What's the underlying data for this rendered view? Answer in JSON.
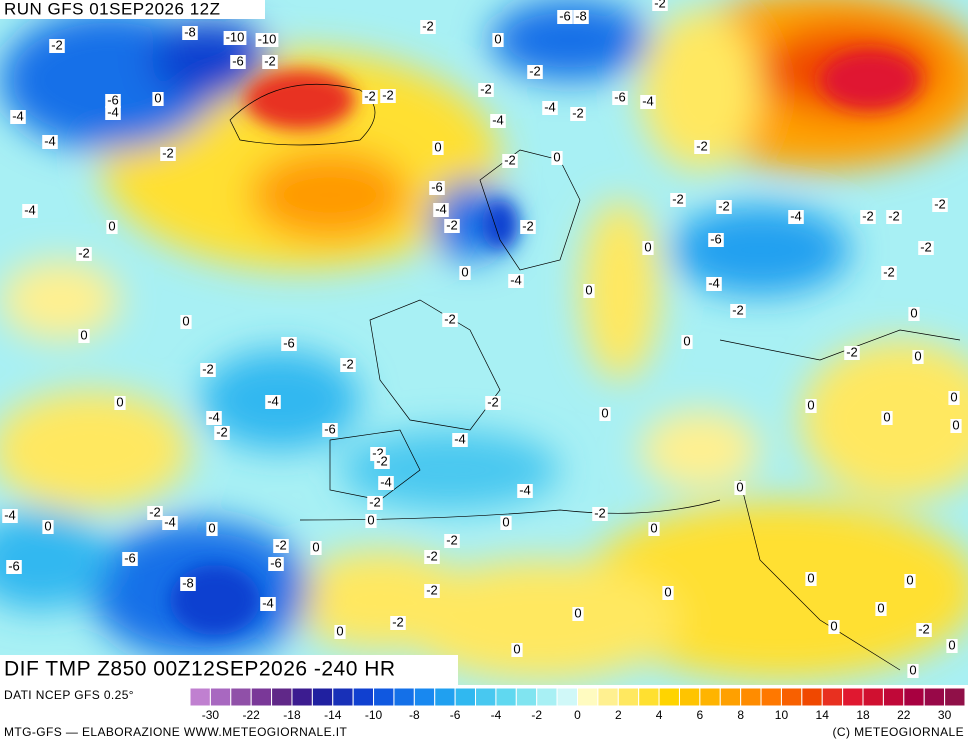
{
  "header": {
    "run": "RUN GFS 01SEP2026 12Z"
  },
  "map": {
    "labels": [
      -2,
      0,
      -6,
      -8,
      -2,
      -2,
      -8,
      -10,
      -10,
      -6,
      -2,
      -2,
      -2,
      -2,
      -2,
      -6,
      -4,
      0,
      -4,
      -6,
      -4,
      -4,
      -2,
      -4,
      -4,
      -2,
      0,
      -2,
      0,
      -2,
      -6,
      -4,
      -2,
      -4,
      0,
      -2,
      -2,
      -2,
      -4,
      -2,
      -2,
      -2,
      -6,
      -2,
      0,
      0,
      -4,
      0,
      -2,
      -4,
      -2,
      0,
      -2,
      0,
      0,
      -6,
      -2,
      0,
      -2,
      0,
      -2,
      -2,
      0,
      -4,
      -2,
      0,
      0,
      0,
      -4,
      -2,
      -6,
      0,
      -2,
      -4,
      -2,
      -4,
      -4,
      -2,
      0,
      0,
      -4,
      -2,
      -4,
      0,
      0,
      0,
      -2,
      0,
      0,
      -2,
      -2,
      0,
      -6,
      -6,
      -6,
      -2,
      -8,
      -2,
      0,
      0,
      0,
      -4,
      0,
      0,
      -2,
      0,
      0,
      -2,
      0,
      0,
      0
    ]
  },
  "footer": {
    "product": "DIF TMP Z850 00Z12SEP2026 -240 HR",
    "source": "DATI NCEP GFS 0.25°",
    "credit": "MTG-GFS — ELABORAZIONE WWW.METEOGIORNALE.IT",
    "copyright": "(C) METEOGIORNALE"
  },
  "colorbar": {
    "colors": [
      "#c080d0",
      "#a868c0",
      "#9050a8",
      "#7a3898",
      "#602888",
      "#3c1c90",
      "#2020a0",
      "#1830b8",
      "#1040d0",
      "#1058e0",
      "#1470e8",
      "#1888f0",
      "#20a0f0",
      "#30b8f0",
      "#48c8f0",
      "#60d8f0",
      "#80e4f0",
      "#a8f0f4",
      "#d0f8f8",
      "#fffbc0",
      "#fff090",
      "#ffe860",
      "#ffe030",
      "#ffd400",
      "#ffc400",
      "#ffb400",
      "#ffa000",
      "#ff8c00",
      "#ff7800",
      "#f86000",
      "#f04800",
      "#e83020",
      "#e01830",
      "#d01030",
      "#c00838",
      "#a80040",
      "#980848",
      "#901048"
    ],
    "ticks": [
      -30,
      -22,
      -18,
      -14,
      -10,
      -8,
      -6,
      -4,
      -2,
      0,
      2,
      4,
      6,
      8,
      10,
      14,
      18,
      22,
      30
    ]
  }
}
